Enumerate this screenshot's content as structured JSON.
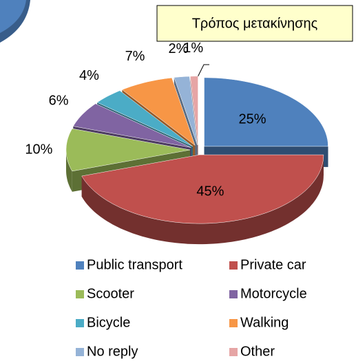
{
  "chart_data": {
    "type": "pie3d",
    "title": "Τρόπος μετακίνησης",
    "categories": [
      "Public transport",
      "Private car",
      "Scooter",
      "Motorcycle",
      "Bicycle",
      "Walking",
      "No reply",
      "Other"
    ],
    "values": [
      25,
      45,
      10,
      6,
      4,
      7,
      2,
      1
    ],
    "value_labels": [
      "25%",
      "45%",
      "10%",
      "6%",
      "4%",
      "7%",
      "2%",
      "1%"
    ],
    "colors": [
      "#4f81bd",
      "#c0504d",
      "#9bbb59",
      "#8064a2",
      "#4bacc6",
      "#f79646",
      "#95b3d7",
      "#e6a5a5"
    ],
    "legend": "bottom"
  }
}
